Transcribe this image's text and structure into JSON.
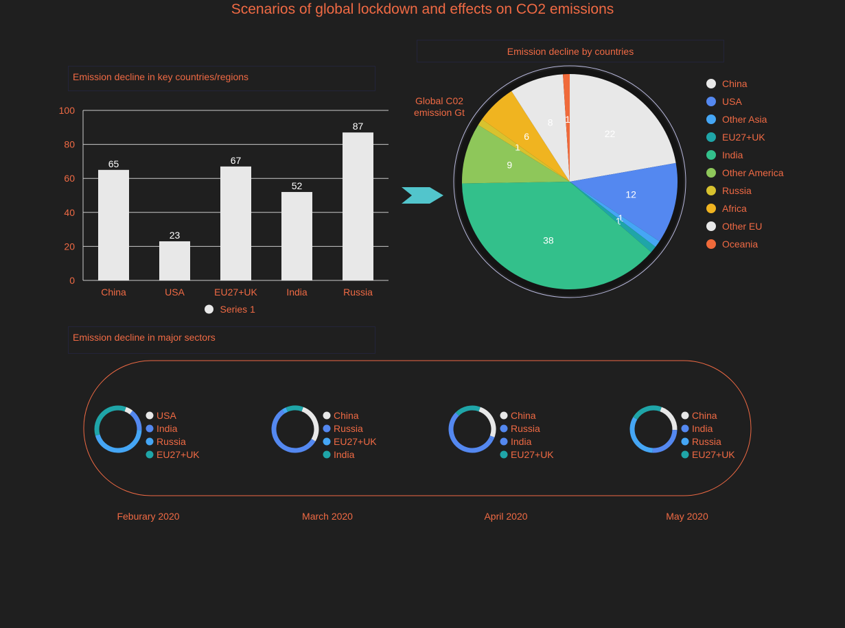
{
  "page": {
    "title": "Scenarios of global lockdown and effects on CO2 emissions",
    "accent_color": "#f06a44",
    "background_color": "#1f1f1f"
  },
  "chart_data": [
    {
      "id": "bar",
      "type": "bar",
      "title": "Emission decline in key countries/regions",
      "categories": [
        "China",
        "USA",
        "EU27+UK",
        "India",
        "Russia"
      ],
      "series": [
        {
          "name": "Series 1",
          "values": [
            65,
            23,
            67,
            52,
            87
          ]
        }
      ],
      "ylim": [
        0,
        100
      ],
      "yticks": [
        0,
        20,
        40,
        60,
        80,
        100
      ],
      "grid": true,
      "legend": "bottom",
      "colors": {
        "bar": "#e8e8e8",
        "grid": "#cccccc",
        "tick_labels": "#f06a44",
        "data_labels": "#ffffff"
      }
    },
    {
      "id": "pie",
      "type": "pie",
      "title": "Emission decline by countries",
      "annotation": "Global C02 emission Gt",
      "legend": "right",
      "slices": [
        {
          "label": "China",
          "value": 22,
          "color": "#e8e8e8",
          "show_label": true
        },
        {
          "label": "USA",
          "value": 12,
          "color": "#5488f0",
          "show_label": true
        },
        {
          "label": "Other Asia",
          "value": 1,
          "color": "#45a6f5",
          "show_label": true
        },
        {
          "label": "EU27+UK",
          "value": 1,
          "color": "#1fa5a8",
          "show_label": true
        },
        {
          "label": "India",
          "value": 38,
          "color": "#33c08b",
          "show_label": true
        },
        {
          "label": "Other America",
          "value": 9,
          "color": "#8ec75a",
          "show_label": true
        },
        {
          "label": "Russia",
          "value": 1,
          "color": "#d8c22e",
          "show_label": true
        },
        {
          "label": "Africa",
          "value": 6,
          "color": "#f0b420",
          "show_label": true
        },
        {
          "label": "Other EU",
          "value": 8,
          "color": "#e8e8e8",
          "show_label": true
        },
        {
          "label": "Oceania",
          "value": 1,
          "color": "#f06a3a",
          "show_label": true
        }
      ]
    },
    {
      "id": "donuts",
      "type": "pie",
      "title": "Emission decline in major sectors",
      "charts": [
        {
          "month": "Feburary 2020",
          "slices": [
            {
              "label": "USA",
              "value": 5,
              "color": "#e8e8e8"
            },
            {
              "label": "India",
              "value": 15,
              "color": "#5488f0"
            },
            {
              "label": "Russia",
              "value": 45,
              "color": "#45a6f5"
            },
            {
              "label": "EU27+UK",
              "value": 35,
              "color": "#1fa5a8"
            }
          ]
        },
        {
          "month": "March 2020",
          "slices": [
            {
              "label": "China",
              "value": 28,
              "color": "#e8e8e8"
            },
            {
              "label": "Russia",
              "value": 57,
              "color": "#5488f0"
            },
            {
              "label": "EU27+UK",
              "value": 3,
              "color": "#45a6f5"
            },
            {
              "label": "India",
              "value": 12,
              "color": "#1fa5a8"
            }
          ]
        },
        {
          "month": "April 2020",
          "slices": [
            {
              "label": "China",
              "value": 25,
              "color": "#e8e8e8"
            },
            {
              "label": "Russia",
              "value": 2,
              "color": "#5488f0"
            },
            {
              "label": "India",
              "value": 55,
              "color": "#5488f0"
            },
            {
              "label": "EU27+UK",
              "value": 18,
              "color": "#1fa5a8"
            }
          ]
        },
        {
          "month": "May 2020",
          "slices": [
            {
              "label": "China",
              "value": 20,
              "color": "#e8e8e8"
            },
            {
              "label": "India",
              "value": 25,
              "color": "#5488f0"
            },
            {
              "label": "Russia",
              "value": 33,
              "color": "#45a6f5"
            },
            {
              "label": "EU27+UK",
              "value": 22,
              "color": "#1fa5a8"
            }
          ]
        }
      ]
    }
  ]
}
